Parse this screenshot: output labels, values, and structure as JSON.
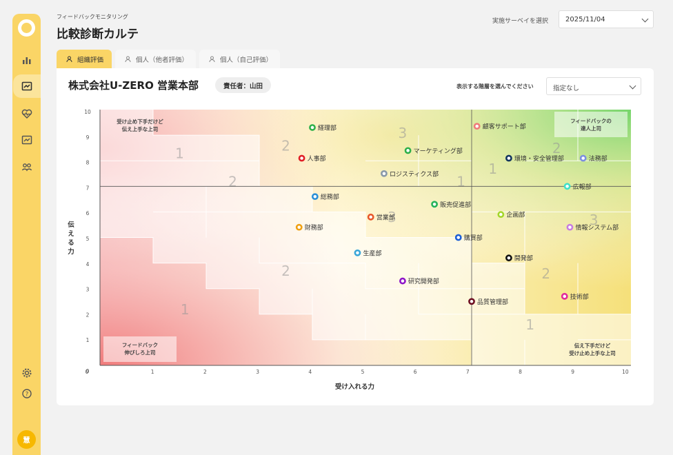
{
  "header": {
    "subtitle": "フィードバックモニタリング",
    "title": "比較診断カルテ",
    "survey_label": "実施サーベイを選択",
    "survey_value": "2025/11/04"
  },
  "sidebar": {
    "avatar_text": "慧",
    "items": [
      {
        "icon": "bar-chart-icon"
      },
      {
        "icon": "feedback-card-icon"
      },
      {
        "icon": "heart-pulse-icon"
      },
      {
        "icon": "feedback-card-icon"
      },
      {
        "icon": "people-group-icon"
      },
      {
        "icon": "gear-icon"
      },
      {
        "icon": "help-icon"
      }
    ]
  },
  "tabs": [
    {
      "label": "組織評価",
      "active": true
    },
    {
      "label": "個人（他者評価）",
      "active": false
    },
    {
      "label": "個人（自己評価）",
      "active": false
    }
  ],
  "card": {
    "org_name": "株式会社U-ZERO 営業本部",
    "manager": "責任者：山田",
    "layer_label": "表示する階層を選んでください",
    "layer_value": "指定なし"
  },
  "chart_data": {
    "type": "scatter",
    "xlabel": "受け入れる力",
    "ylabel": "伝える力",
    "xlim": [
      0,
      10
    ],
    "ylim": [
      0,
      10
    ],
    "x_ticks": [
      0,
      1,
      2,
      3,
      4,
      5,
      6,
      7,
      8,
      9,
      10
    ],
    "y_ticks": [
      0,
      1,
      2,
      3,
      4,
      5,
      6,
      7,
      8,
      9,
      10
    ],
    "reference_lines": {
      "x": 7,
      "y": 7
    },
    "corner_labels": {
      "top_left": "受け止め下手だけど\n伝え上手な上司",
      "top_right": "フィードバックの\n達人上司",
      "bottom_left": "フィードバック\n伸びしろ上司",
      "bottom_right": "伝え下手だけど\n受け止め上手な上司"
    },
    "zone_numbers": [
      "1",
      "2",
      "3",
      "2",
      "1",
      "3",
      "2",
      "1",
      "1",
      "2",
      "3",
      "2",
      "1"
    ],
    "points": [
      {
        "name": "経理部",
        "x": 4.0,
        "y": 9.3,
        "color": "#2eb04a"
      },
      {
        "name": "顧客サポート部",
        "x": 7.1,
        "y": 9.35,
        "color": "#f07a7a"
      },
      {
        "name": "人事部",
        "x": 3.8,
        "y": 8.1,
        "color": "#e01e26"
      },
      {
        "name": "マーケティング部",
        "x": 5.8,
        "y": 8.4,
        "color": "#2eb04a"
      },
      {
        "name": "環境・安全管理部",
        "x": 7.7,
        "y": 8.1,
        "color": "#13355e"
      },
      {
        "name": "法務部",
        "x": 9.1,
        "y": 8.1,
        "color": "#7c8fe0"
      },
      {
        "name": "ロジスティクス部",
        "x": 5.35,
        "y": 7.5,
        "color": "#8a99a8"
      },
      {
        "name": "広報部",
        "x": 8.8,
        "y": 7.0,
        "color": "#3fe0c8"
      },
      {
        "name": "総務部",
        "x": 4.05,
        "y": 6.6,
        "color": "#2a8fd8"
      },
      {
        "name": "販売促進部",
        "x": 6.3,
        "y": 6.3,
        "color": "#26b35a"
      },
      {
        "name": "営業部",
        "x": 5.1,
        "y": 5.8,
        "color": "#e8582a"
      },
      {
        "name": "企画部",
        "x": 7.55,
        "y": 5.9,
        "color": "#a3d62a"
      },
      {
        "name": "財務部",
        "x": 3.75,
        "y": 5.4,
        "color": "#f0a012"
      },
      {
        "name": "情報システム部",
        "x": 8.85,
        "y": 5.4,
        "color": "#c77de0"
      },
      {
        "name": "購買部",
        "x": 6.75,
        "y": 5.0,
        "color": "#1d5fd6"
      },
      {
        "name": "生産部",
        "x": 4.85,
        "y": 4.4,
        "color": "#3aa6d8"
      },
      {
        "name": "開発部",
        "x": 7.7,
        "y": 4.2,
        "color": "#111111"
      },
      {
        "name": "研究開発部",
        "x": 5.7,
        "y": 3.3,
        "color": "#8e16c8"
      },
      {
        "name": "品質管理部",
        "x": 7.0,
        "y": 2.5,
        "color": "#6e0f22"
      },
      {
        "name": "技術部",
        "x": 8.75,
        "y": 2.7,
        "color": "#e22a9a"
      }
    ]
  }
}
